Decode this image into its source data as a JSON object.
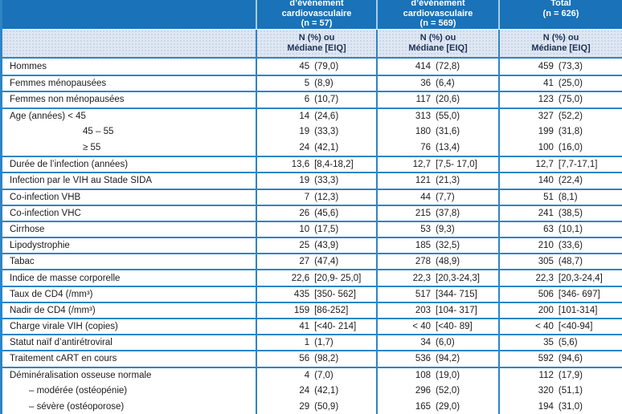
{
  "table": {
    "header": {
      "col_event": {
        "lines": [
          "d’événement",
          "cardiovasculaire",
          "(n = 57)"
        ]
      },
      "col_no_event": {
        "lines": [
          "d’événement",
          "cardiovasculaire",
          "(n = 569)"
        ]
      },
      "col_total": {
        "lines": [
          "Total",
          "(n = 626)"
        ]
      }
    },
    "subheader": {
      "line1": "N (%) ou",
      "line2": "Médiane [EIQ]"
    },
    "colors": {
      "header_bg": "#1a72b8",
      "grid_line": "#2d85c5",
      "subheader_bg": "#dfe7f2",
      "subheader_text": "#1d3054",
      "header_text": "#ffffff",
      "body_text": "#1c1c1c"
    },
    "rows": [
      {
        "label": "Hommes",
        "indent": 0,
        "sep": false,
        "values": [
          [
            "45",
            "(79,0)"
          ],
          [
            "414",
            "(72,8)"
          ],
          [
            "459",
            "(73,3)"
          ]
        ]
      },
      {
        "label": "Femmes ménopausées",
        "indent": 0,
        "sep": true,
        "values": [
          [
            "5",
            "(8,9)"
          ],
          [
            "36",
            "(6,4)"
          ],
          [
            "41",
            "(25,0)"
          ]
        ]
      },
      {
        "label": "Femmes non ménopausées",
        "indent": 0,
        "sep": true,
        "values": [
          [
            "6",
            "(10,7)"
          ],
          [
            "117",
            "(20,6)"
          ],
          [
            "123",
            "(75,0)"
          ]
        ]
      },
      {
        "label": "Age (années) < 45",
        "indent": 0,
        "sep": true,
        "values": [
          [
            "14",
            "(24,6)"
          ],
          [
            "313",
            "(55,0)"
          ],
          [
            "327",
            "(52,2)"
          ]
        ]
      },
      {
        "label": "45 – 55",
        "indent": 1,
        "sep": false,
        "values": [
          [
            "19",
            "(33,3)"
          ],
          [
            "180",
            "(31,6)"
          ],
          [
            "199",
            "(31,8)"
          ]
        ]
      },
      {
        "label": "≥ 55",
        "indent": 1,
        "sep": false,
        "values": [
          [
            "24",
            "(42,1)"
          ],
          [
            "76",
            "(13,4)"
          ],
          [
            "100",
            "(16,0)"
          ]
        ]
      },
      {
        "label": "Durée de l’infection (années)",
        "indent": 0,
        "sep": true,
        "values": [
          [
            "13,6",
            "[8,4-18,2]"
          ],
          [
            "12,7",
            "[7,5- 17,0]"
          ],
          [
            "12,7",
            "[7,7-17,1]"
          ]
        ]
      },
      {
        "label": "Infection par le VIH au Stade SIDA",
        "indent": 0,
        "sep": true,
        "values": [
          [
            "19",
            "(33,3)"
          ],
          [
            "121",
            "(21,3)"
          ],
          [
            "140",
            "(22,4)"
          ]
        ]
      },
      {
        "label": "Co-infection VHB",
        "indent": 0,
        "sep": true,
        "values": [
          [
            "7",
            "(12,3)"
          ],
          [
            "44",
            "(7,7)"
          ],
          [
            "51",
            "(8,1)"
          ]
        ]
      },
      {
        "label": "Co-infection VHC",
        "indent": 0,
        "sep": true,
        "values": [
          [
            "26",
            "(45,6)"
          ],
          [
            "215",
            "(37,8)"
          ],
          [
            "241",
            "(38,5)"
          ]
        ]
      },
      {
        "label": "Cirrhose",
        "indent": 0,
        "sep": true,
        "values": [
          [
            "10",
            "(17,5)"
          ],
          [
            "53",
            "(9,3)"
          ],
          [
            "63",
            "(10,1)"
          ]
        ]
      },
      {
        "label": "Lipodystrophie",
        "indent": 0,
        "sep": true,
        "values": [
          [
            "25",
            "(43,9)"
          ],
          [
            "185",
            "(32,5)"
          ],
          [
            "210",
            "(33,6)"
          ]
        ]
      },
      {
        "label": "Tabac",
        "indent": 0,
        "sep": true,
        "values": [
          [
            "27",
            "(47,4)"
          ],
          [
            "278",
            "(48,9)"
          ],
          [
            "305",
            "(48,7)"
          ]
        ]
      },
      {
        "label": "Indice de masse corporelle",
        "indent": 0,
        "sep": true,
        "values": [
          [
            "22,6",
            "[20,9- 25,0]"
          ],
          [
            "22,3",
            "[20,3-24,3]"
          ],
          [
            "22,3",
            "[20,3-24,4]"
          ]
        ]
      },
      {
        "label": "Taux de CD4 (/mm³)",
        "indent": 0,
        "sep": true,
        "values": [
          [
            "435",
            "[350- 562]"
          ],
          [
            "517",
            "[344- 715]"
          ],
          [
            "506",
            "[346- 697]"
          ]
        ]
      },
      {
        "label": "Nadir de CD4 (/mm³)",
        "indent": 0,
        "sep": true,
        "values": [
          [
            "159",
            "[86-252]"
          ],
          [
            "203",
            "[104- 317]"
          ],
          [
            "200",
            "[101-314]"
          ]
        ]
      },
      {
        "label": "Charge virale VIH (copies)",
        "indent": 0,
        "sep": true,
        "values": [
          [
            "41",
            "[<40- 214]"
          ],
          [
            "< 40",
            "[<40- 89]"
          ],
          [
            "< 40",
            "[<40-94]"
          ]
        ]
      },
      {
        "label": "Statut naïf d’antirétroviral",
        "indent": 0,
        "sep": true,
        "values": [
          [
            "1",
            "(1,7)"
          ],
          [
            "34",
            "(6,0)"
          ],
          [
            "35",
            "(5,6)"
          ]
        ]
      },
      {
        "label": "Traitement cART en cours",
        "indent": 0,
        "sep": true,
        "values": [
          [
            "56",
            "(98,2)"
          ],
          [
            "536",
            "(94,2)"
          ],
          [
            "592",
            "(94,6)"
          ]
        ]
      },
      {
        "label": "Déminéralisation osseuse normale",
        "indent": 0,
        "sep": true,
        "values": [
          [
            "4",
            "(7,0)"
          ],
          [
            "108",
            "(19,0)"
          ],
          [
            "112",
            "(17,9)"
          ]
        ]
      },
      {
        "label": "– modérée (ostéopénie)",
        "indent": 2,
        "sep": false,
        "values": [
          [
            "24",
            "(42,1)"
          ],
          [
            "296",
            "(52,0)"
          ],
          [
            "320",
            "(51,1)"
          ]
        ]
      },
      {
        "label": "– sévère (ostéoporose)",
        "indent": 2,
        "sep": false,
        "values": [
          [
            "29",
            "(50,9)"
          ],
          [
            "165",
            "(29,0)"
          ],
          [
            "194",
            "(31,0)"
          ]
        ]
      }
    ]
  }
}
